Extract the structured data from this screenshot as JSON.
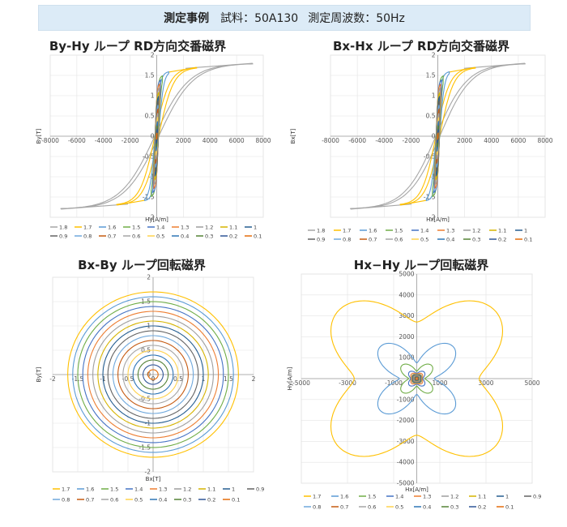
{
  "header": {
    "title": "測定事例",
    "sample": "試料：50A130",
    "frequency": "測定周波数：50Hz"
  },
  "colors": {
    "1.8": "#a6a6a6",
    "1.7": "#ffc000",
    "1.6": "#5b9bd5",
    "1.5": "#70ad47",
    "1.4": "#4472c4",
    "1.3": "#ed7d31",
    "1.2": "#9e9e9e",
    "1.1": "#d6b400",
    "1": "#255e91",
    "0.9": "#636363",
    "0.8": "#6fa8dc",
    "0.7": "#c55a11",
    "0.6": "#a5a5a5",
    "0.5": "#ffd24d",
    "0.4": "#2e75b6",
    "0.3": "#548235",
    "0.2": "#2f5597",
    "0.1": "#e46c0a"
  },
  "chart_data": [
    {
      "type": "line",
      "title": "By-Hy ループ RD方向交番磁界",
      "xlabel": "Hy[A/m]",
      "ylabel": "By[T]",
      "xlim": [
        -8000,
        8000
      ],
      "ylim": [
        -2,
        2
      ],
      "xticks": [
        "-8000",
        "-6000",
        "-4000",
        "-2000",
        "0",
        "2000",
        "4000",
        "6000",
        "8000"
      ],
      "yticks": [
        "-2",
        "-1.5",
        "-1",
        "-0.5",
        "0",
        "0.5",
        "1",
        "1.5",
        "2"
      ],
      "series": [
        {
          "name": "1.8",
          "peak_B": 1.8,
          "peak_H": 7200
        },
        {
          "name": "1.7",
          "peak_B": 1.7,
          "peak_H": 3000
        },
        {
          "name": "1.6",
          "peak_B": 1.6,
          "peak_H": 900
        },
        {
          "name": "1.5",
          "peak_B": 1.5,
          "peak_H": 420
        },
        {
          "name": "1.4",
          "peak_B": 1.4,
          "peak_H": 280
        },
        {
          "name": "1.3",
          "peak_B": 1.3,
          "peak_H": 210
        },
        {
          "name": "1.2",
          "peak_B": 1.2,
          "peak_H": 175
        },
        {
          "name": "1.1",
          "peak_B": 1.1,
          "peak_H": 150
        },
        {
          "name": "1",
          "peak_B": 1.0,
          "peak_H": 130
        },
        {
          "name": "0.9",
          "peak_B": 0.9,
          "peak_H": 115
        },
        {
          "name": "0.8",
          "peak_B": 0.8,
          "peak_H": 100
        },
        {
          "name": "0.7",
          "peak_B": 0.7,
          "peak_H": 90
        },
        {
          "name": "0.6",
          "peak_B": 0.6,
          "peak_H": 80
        },
        {
          "name": "0.5",
          "peak_B": 0.5,
          "peak_H": 70
        },
        {
          "name": "0.4",
          "peak_B": 0.4,
          "peak_H": 60
        },
        {
          "name": "0.3",
          "peak_B": 0.3,
          "peak_H": 50
        },
        {
          "name": "0.2",
          "peak_B": 0.2,
          "peak_H": 40
        },
        {
          "name": "0.1",
          "peak_B": 0.1,
          "peak_H": 30
        }
      ]
    },
    {
      "type": "line",
      "title": "Bx-Hx ループ RD方向交番磁界",
      "xlabel": "Hx[A/m]",
      "ylabel": "Bx[T]",
      "xlim": [
        -8000,
        8000
      ],
      "ylim": [
        -2,
        2
      ],
      "xticks": [
        "-8000",
        "-6000",
        "-4000",
        "-2000",
        "0",
        "2000",
        "4000",
        "6000",
        "8000"
      ],
      "yticks": [
        "-2",
        "-1.5",
        "-1",
        "-0.5",
        "0",
        "0.5",
        "1",
        "1.5",
        "2"
      ],
      "series": [
        {
          "name": "1.8",
          "peak_B": 1.8,
          "peak_H": 6500
        },
        {
          "name": "1.7",
          "peak_B": 1.7,
          "peak_H": 2800
        },
        {
          "name": "1.6",
          "peak_B": 1.6,
          "peak_H": 850
        },
        {
          "name": "1.5",
          "peak_B": 1.5,
          "peak_H": 400
        },
        {
          "name": "1.4",
          "peak_B": 1.4,
          "peak_H": 270
        },
        {
          "name": "1.3",
          "peak_B": 1.3,
          "peak_H": 205
        },
        {
          "name": "1.2",
          "peak_B": 1.2,
          "peak_H": 170
        },
        {
          "name": "1.1",
          "peak_B": 1.1,
          "peak_H": 145
        },
        {
          "name": "1",
          "peak_B": 1.0,
          "peak_H": 125
        },
        {
          "name": "0.9",
          "peak_B": 0.9,
          "peak_H": 110
        },
        {
          "name": "0.8",
          "peak_B": 0.8,
          "peak_H": 98
        },
        {
          "name": "0.7",
          "peak_B": 0.7,
          "peak_H": 88
        },
        {
          "name": "0.6",
          "peak_B": 0.6,
          "peak_H": 78
        },
        {
          "name": "0.5",
          "peak_B": 0.5,
          "peak_H": 68
        },
        {
          "name": "0.4",
          "peak_B": 0.4,
          "peak_H": 58
        },
        {
          "name": "0.3",
          "peak_B": 0.3,
          "peak_H": 48
        },
        {
          "name": "0.2",
          "peak_B": 0.2,
          "peak_H": 38
        },
        {
          "name": "0.1",
          "peak_B": 0.1,
          "peak_H": 28
        }
      ]
    },
    {
      "type": "line",
      "title": "Bx-By ループ回転磁界",
      "xlabel": "Bx[T]",
      "ylabel": "By[T]",
      "xlim": [
        -2,
        2
      ],
      "ylim": [
        -2,
        2
      ],
      "xticks": [
        "-2",
        "-1.5",
        "-1",
        "-0.5",
        "0",
        "0.5",
        "1",
        "1.5",
        "2"
      ],
      "yticks": [
        "-2",
        "-1.5",
        "-1",
        "-0.5",
        "0",
        "0.5",
        "1",
        "1.5",
        "2"
      ],
      "series": [
        {
          "name": "1.7",
          "radius": 1.7
        },
        {
          "name": "1.6",
          "radius": 1.6
        },
        {
          "name": "1.5",
          "radius": 1.5
        },
        {
          "name": "1.4",
          "radius": 1.4
        },
        {
          "name": "1.3",
          "radius": 1.3
        },
        {
          "name": "1.2",
          "radius": 1.2
        },
        {
          "name": "1.1",
          "radius": 1.1
        },
        {
          "name": "1",
          "radius": 1.0
        },
        {
          "name": "0.9",
          "radius": 0.9
        },
        {
          "name": "0.8",
          "radius": 0.8
        },
        {
          "name": "0.7",
          "radius": 0.7
        },
        {
          "name": "0.6",
          "radius": 0.6
        },
        {
          "name": "0.5",
          "radius": 0.5
        },
        {
          "name": "0.4",
          "radius": 0.4
        },
        {
          "name": "0.3",
          "radius": 0.3
        },
        {
          "name": "0.2",
          "radius": 0.2
        },
        {
          "name": "0.1",
          "radius": 0.1
        }
      ]
    },
    {
      "type": "line",
      "title": "Hx−Hy ループ回転磁界",
      "xlabel": "Hx[A/m]",
      "ylabel": "Hy[A/m]",
      "xlim": [
        -5000,
        5000
      ],
      "ylim": [
        -5000,
        5000
      ],
      "xticks": [
        "-5000",
        "-3000",
        "-1000",
        "1000",
        "3000",
        "5000"
      ],
      "yticks": [
        "-5000",
        "-4000",
        "-3000",
        "-2000",
        "-1000",
        "0",
        "1000",
        "2000",
        "3000",
        "4000",
        "5000"
      ],
      "series": [
        {
          "name": "1.7",
          "lobe_H": 4700,
          "waist_H": 2700
        },
        {
          "name": "1.6",
          "lobe_H": 2200,
          "waist_H": 750
        },
        {
          "name": "1.5",
          "lobe_H": 900,
          "waist_H": 350
        },
        {
          "name": "1.4",
          "lobe_H": 450,
          "waist_H": 250
        },
        {
          "name": "1.3",
          "lobe_H": 320,
          "waist_H": 220
        },
        {
          "name": "1.2",
          "lobe_H": 260,
          "waist_H": 200
        },
        {
          "name": "1.1",
          "lobe_H": 230,
          "waist_H": 185
        },
        {
          "name": "1",
          "lobe_H": 210,
          "waist_H": 170
        },
        {
          "name": "0.9",
          "lobe_H": 190,
          "waist_H": 155
        },
        {
          "name": "0.8",
          "lobe_H": 170,
          "waist_H": 140
        },
        {
          "name": "0.7",
          "lobe_H": 150,
          "waist_H": 125
        },
        {
          "name": "0.6",
          "lobe_H": 135,
          "waist_H": 110
        },
        {
          "name": "0.5",
          "lobe_H": 120,
          "waist_H": 100
        },
        {
          "name": "0.4",
          "lobe_H": 105,
          "waist_H": 88
        },
        {
          "name": "0.3",
          "lobe_H": 90,
          "waist_H": 75
        },
        {
          "name": "0.2",
          "lobe_H": 75,
          "waist_H": 62
        },
        {
          "name": "0.1",
          "lobe_H": 55,
          "waist_H": 45
        }
      ]
    }
  ]
}
